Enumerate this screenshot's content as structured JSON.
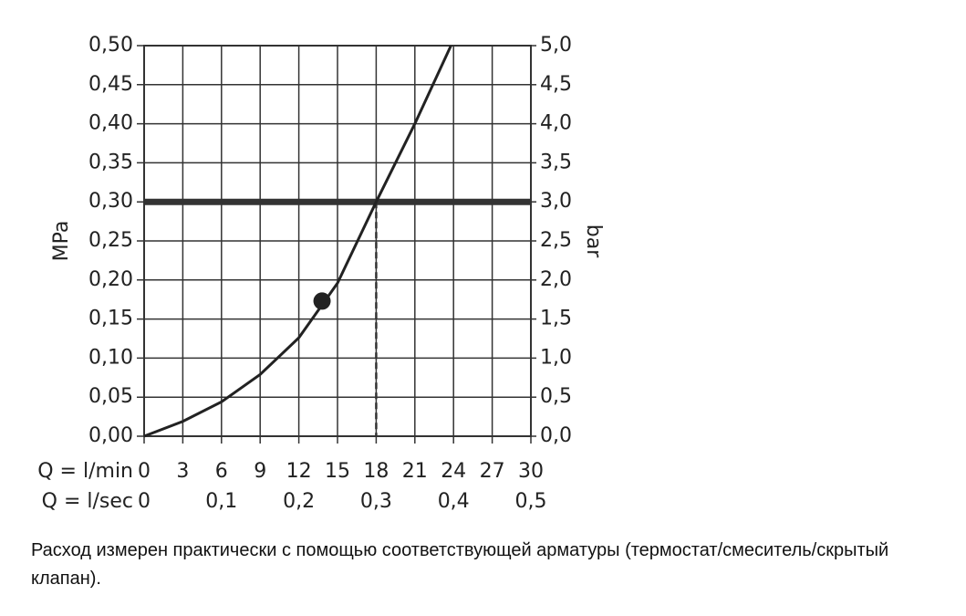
{
  "chart_data": {
    "type": "line",
    "ylabel": "MPa",
    "y2label": "bar",
    "xlabel": "Q = l/min",
    "x2label": "Q = l/sec",
    "xlim": [
      0,
      30
    ],
    "xticks": [
      0,
      3,
      6,
      9,
      12,
      15,
      18,
      21,
      24,
      27,
      30
    ],
    "x2lim": [
      0,
      0.5
    ],
    "x2ticks": [
      0,
      {
        "value": 0.1,
        "label": "0,1"
      },
      {
        "value": 0.2,
        "label": "0,2"
      },
      {
        "value": 0.3,
        "label": "0,3"
      },
      {
        "value": 0.4,
        "label": "0,4"
      },
      {
        "value": 0.5,
        "label": "0,5"
      }
    ],
    "ylim": [
      0,
      0.5
    ],
    "yticks": [
      {
        "value": 0,
        "label": "0,00"
      },
      {
        "value": 0.05,
        "label": "0,05"
      },
      {
        "value": 0.1,
        "label": "0,10"
      },
      {
        "value": 0.15,
        "label": "0,15"
      },
      {
        "value": 0.2,
        "label": "0,20"
      },
      {
        "value": 0.25,
        "label": "0,25"
      },
      {
        "value": 0.3,
        "label": "0,30"
      },
      {
        "value": 0.35,
        "label": "0,35"
      },
      {
        "value": 0.4,
        "label": "0,40"
      },
      {
        "value": 0.45,
        "label": "0,45"
      },
      {
        "value": 0.5,
        "label": "0,50"
      }
    ],
    "y2lim": [
      0,
      5
    ],
    "y2ticks": [
      {
        "value": 0,
        "label": "0,0"
      },
      {
        "value": 0.5,
        "label": "0,5"
      },
      {
        "value": 1,
        "label": "1,0"
      },
      {
        "value": 1.5,
        "label": "1,5"
      },
      {
        "value": 2,
        "label": "2,0"
      },
      {
        "value": 2.5,
        "label": "2,5"
      },
      {
        "value": 3,
        "label": "3,0"
      },
      {
        "value": 3.5,
        "label": "3,5"
      },
      {
        "value": 4,
        "label": "4,0"
      },
      {
        "value": 4.5,
        "label": "4,5"
      },
      {
        "value": 5,
        "label": "5,0"
      }
    ],
    "grid": true,
    "series": [
      {
        "color": "#222222",
        "x": [
          0,
          3,
          6,
          9,
          12,
          15,
          18,
          21,
          23.8
        ],
        "values": [
          0,
          0.019,
          0.044,
          0.079,
          0.126,
          0.196,
          0.3,
          0.4,
          0.5
        ]
      }
    ],
    "marker": {
      "x": 13.8,
      "value": 0.173,
      "color": "#222222"
    },
    "reference_y": 0.3,
    "reference_x": 18,
    "note": "Расход измерен практически с помощью соответствующей арматуры (термостат/смеситель/скрытый клапан)."
  }
}
